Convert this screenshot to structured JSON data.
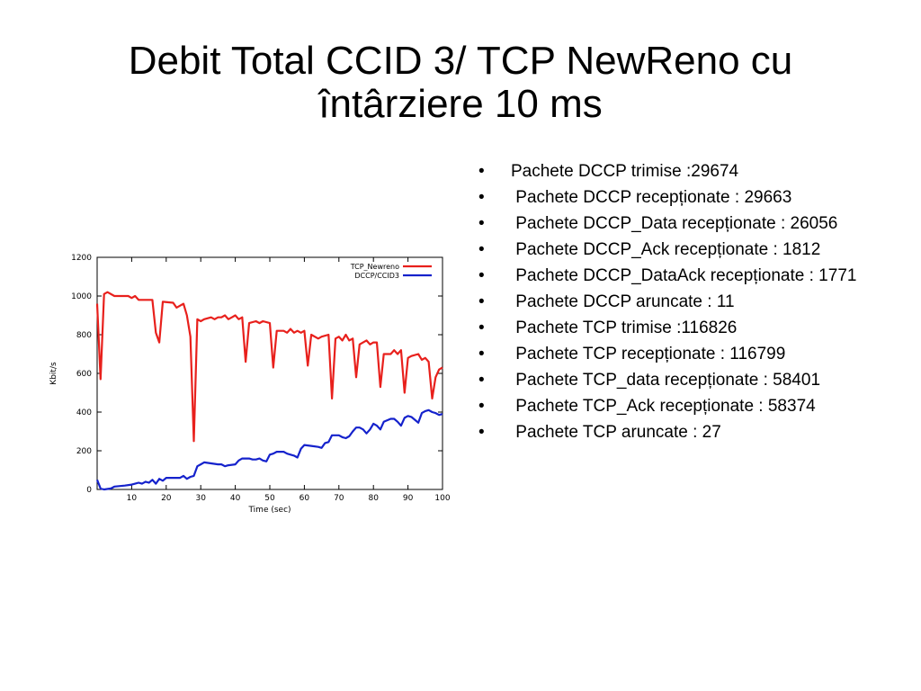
{
  "title": {
    "line1": "Debit Total CCID 3/ TCP NewReno cu",
    "line2": "întârziere 10 ms"
  },
  "bullets": [
    "Pachete DCCP trimise :29674",
    " Pachete DCCP recepționate : 29663",
    " Pachete DCCP_Data recepționate : 26056",
    " Pachete DCCP_Ack recepționate : 1812",
    " Pachete DCCP_DataAck recepționate : 1771",
    " Pachete DCCP aruncate : 11",
    " Pachete TCP trimise :116826",
    " Pachete TCP recepționate : 116799",
    " Pachete TCP_data recepționate : 58401",
    " Pachete TCP_Ack recepționate : 58374",
    " Pachete TCP aruncate : 27"
  ],
  "bullet_symbol": "•",
  "chart_data": {
    "type": "line",
    "title": "",
    "xlabel": "Time (sec)",
    "ylabel": "Kbit/s",
    "xlim": [
      0,
      100
    ],
    "ylim": [
      0,
      1200
    ],
    "xticks": [
      10,
      20,
      30,
      40,
      50,
      60,
      70,
      80,
      90,
      100
    ],
    "yticks": [
      0,
      200,
      400,
      600,
      800,
      1000,
      1200
    ],
    "grid": false,
    "legend_position": "top-right",
    "series": [
      {
        "name": "TCP_Newreno",
        "color": "#e8201c",
        "points": [
          [
            0,
            960
          ],
          [
            1,
            570
          ],
          [
            2,
            1010
          ],
          [
            3,
            1020
          ],
          [
            5,
            1000
          ],
          [
            9,
            1000
          ],
          [
            10,
            990
          ],
          [
            11,
            1000
          ],
          [
            12,
            980
          ],
          [
            16,
            980
          ],
          [
            17,
            810
          ],
          [
            18,
            760
          ],
          [
            19,
            970
          ],
          [
            22,
            965
          ],
          [
            23,
            940
          ],
          [
            25,
            960
          ],
          [
            26,
            900
          ],
          [
            27,
            790
          ],
          [
            28,
            250
          ],
          [
            29,
            880
          ],
          [
            30,
            870
          ],
          [
            31,
            880
          ],
          [
            33,
            890
          ],
          [
            34,
            880
          ],
          [
            35,
            890
          ],
          [
            36,
            890
          ],
          [
            37,
            900
          ],
          [
            38,
            880
          ],
          [
            39,
            890
          ],
          [
            40,
            900
          ],
          [
            41,
            880
          ],
          [
            42,
            890
          ],
          [
            43,
            660
          ],
          [
            44,
            860
          ],
          [
            46,
            870
          ],
          [
            47,
            860
          ],
          [
            48,
            870
          ],
          [
            50,
            860
          ],
          [
            51,
            630
          ],
          [
            52,
            820
          ],
          [
            54,
            820
          ],
          [
            55,
            810
          ],
          [
            56,
            830
          ],
          [
            57,
            810
          ],
          [
            58,
            820
          ],
          [
            59,
            810
          ],
          [
            60,
            820
          ],
          [
            61,
            640
          ],
          [
            62,
            800
          ],
          [
            64,
            780
          ],
          [
            65,
            790
          ],
          [
            67,
            800
          ],
          [
            68,
            470
          ],
          [
            69,
            780
          ],
          [
            70,
            790
          ],
          [
            71,
            770
          ],
          [
            72,
            800
          ],
          [
            73,
            770
          ],
          [
            74,
            780
          ],
          [
            75,
            580
          ],
          [
            76,
            750
          ],
          [
            77,
            760
          ],
          [
            78,
            770
          ],
          [
            79,
            750
          ],
          [
            80,
            760
          ],
          [
            81,
            760
          ],
          [
            82,
            530
          ],
          [
            83,
            700
          ],
          [
            85,
            700
          ],
          [
            86,
            720
          ],
          [
            87,
            700
          ],
          [
            88,
            720
          ],
          [
            89,
            500
          ],
          [
            90,
            680
          ],
          [
            91,
            690
          ],
          [
            93,
            700
          ],
          [
            94,
            670
          ],
          [
            95,
            680
          ],
          [
            96,
            660
          ],
          [
            97,
            470
          ],
          [
            98,
            580
          ],
          [
            99,
            620
          ],
          [
            100,
            630
          ]
        ]
      },
      {
        "name": "DCCP/CCID3",
        "color": "#1522cc",
        "points": [
          [
            0,
            50
          ],
          [
            1,
            5
          ],
          [
            2,
            0
          ],
          [
            4,
            5
          ],
          [
            5,
            15
          ],
          [
            8,
            20
          ],
          [
            10,
            25
          ],
          [
            11,
            30
          ],
          [
            12,
            35
          ],
          [
            13,
            30
          ],
          [
            14,
            40
          ],
          [
            15,
            35
          ],
          [
            16,
            50
          ],
          [
            17,
            30
          ],
          [
            18,
            55
          ],
          [
            19,
            45
          ],
          [
            20,
            60
          ],
          [
            24,
            60
          ],
          [
            25,
            70
          ],
          [
            26,
            55
          ],
          [
            27,
            65
          ],
          [
            28,
            70
          ],
          [
            29,
            120
          ],
          [
            30,
            130
          ],
          [
            31,
            140
          ],
          [
            33,
            135
          ],
          [
            35,
            130
          ],
          [
            36,
            130
          ],
          [
            37,
            120
          ],
          [
            38,
            125
          ],
          [
            40,
            130
          ],
          [
            41,
            150
          ],
          [
            42,
            160
          ],
          [
            44,
            160
          ],
          [
            45,
            155
          ],
          [
            46,
            155
          ],
          [
            47,
            160
          ],
          [
            48,
            150
          ],
          [
            49,
            145
          ],
          [
            50,
            180
          ],
          [
            51,
            185
          ],
          [
            52,
            195
          ],
          [
            54,
            195
          ],
          [
            55,
            185
          ],
          [
            56,
            180
          ],
          [
            57,
            175
          ],
          [
            58,
            165
          ],
          [
            59,
            210
          ],
          [
            60,
            230
          ],
          [
            62,
            225
          ],
          [
            64,
            220
          ],
          [
            65,
            215
          ],
          [
            66,
            240
          ],
          [
            67,
            245
          ],
          [
            68,
            280
          ],
          [
            70,
            280
          ],
          [
            71,
            270
          ],
          [
            72,
            265
          ],
          [
            73,
            275
          ],
          [
            74,
            300
          ],
          [
            75,
            320
          ],
          [
            76,
            320
          ],
          [
            77,
            310
          ],
          [
            78,
            290
          ],
          [
            79,
            310
          ],
          [
            80,
            340
          ],
          [
            81,
            330
          ],
          [
            82,
            310
          ],
          [
            83,
            350
          ],
          [
            85,
            365
          ],
          [
            86,
            365
          ],
          [
            87,
            350
          ],
          [
            88,
            330
          ],
          [
            89,
            370
          ],
          [
            90,
            380
          ],
          [
            91,
            375
          ],
          [
            92,
            360
          ],
          [
            93,
            345
          ],
          [
            94,
            395
          ],
          [
            95,
            405
          ],
          [
            96,
            410
          ],
          [
            97,
            400
          ],
          [
            98,
            395
          ],
          [
            99,
            385
          ],
          [
            100,
            390
          ]
        ]
      }
    ]
  }
}
